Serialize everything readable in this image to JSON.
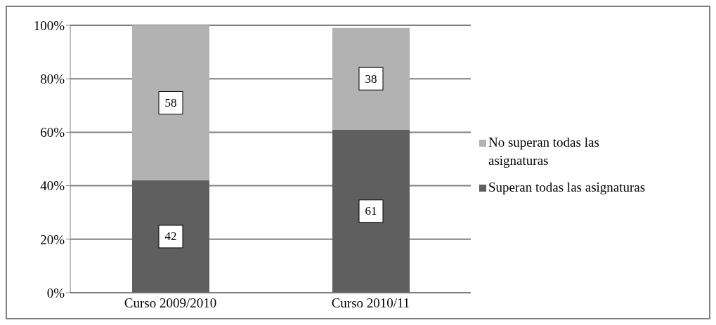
{
  "chart_data": {
    "type": "bar",
    "stacked": true,
    "categories": [
      "Curso 2009/2010",
      "Curso 2010/11"
    ],
    "series": [
      {
        "name": "Superan todas las asignaturas",
        "color": "#5f5f5f",
        "values": [
          42,
          61
        ]
      },
      {
        "name": "No superan todas las asignaturas",
        "color": "#b2b2b2",
        "values": [
          58,
          38
        ]
      }
    ],
    "ylim": [
      0,
      100
    ],
    "yticks": [
      {
        "value": 0,
        "label": "0%"
      },
      {
        "value": 20,
        "label": "20%"
      },
      {
        "value": 40,
        "label": "40%"
      },
      {
        "value": 60,
        "label": "60%"
      },
      {
        "value": 80,
        "label": "80%"
      },
      {
        "value": 100,
        "label": "100%"
      }
    ],
    "grid": "y",
    "legend": "right",
    "data_labels": true
  }
}
